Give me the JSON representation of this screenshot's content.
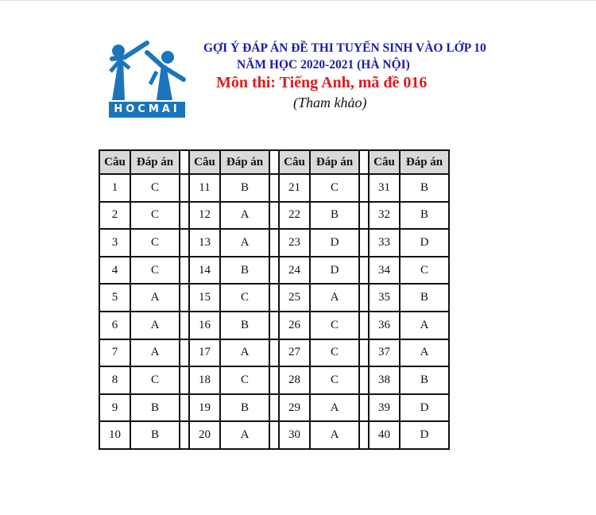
{
  "header": {
    "logo_text": "HOCMAI",
    "line1": "GỢI Ý ĐÁP ÁN ĐỀ THI TUYỂN SINH VÀO LỚP 10",
    "line2": "NĂM HỌC 2020-2021 (HÀ NỘI)",
    "line3": "Môn thi: Tiếng Anh, mã đề 016",
    "line4": "(Tham khảo)",
    "colors": {
      "blue": "#1c1ca8",
      "red": "#e01b1b",
      "logo": "#1b75bc"
    }
  },
  "table": {
    "col_question": "Câu",
    "col_answer": "Đáp án",
    "answers": [
      "C",
      "C",
      "C",
      "C",
      "A",
      "A",
      "A",
      "C",
      "B",
      "B",
      "B",
      "A",
      "A",
      "B",
      "C",
      "B",
      "A",
      "C",
      "B",
      "A",
      "C",
      "B",
      "D",
      "D",
      "A",
      "C",
      "C",
      "C",
      "A",
      "A",
      "B",
      "B",
      "D",
      "C",
      "B",
      "A",
      "A",
      "B",
      "D",
      "D"
    ]
  }
}
